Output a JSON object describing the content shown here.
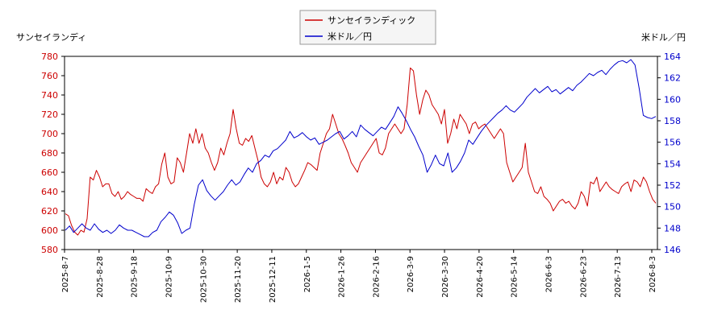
{
  "chart_data": {
    "type": "line",
    "left_axis_label": "サンセイランディ",
    "right_axis_label": "米ドル／円",
    "legend_position": "top-center",
    "grid": false,
    "x_labels": [
      "2025-8-7",
      "2025-8-28",
      "2025-9-18",
      "2025-10-9",
      "2025-10-30",
      "2025-11-20",
      "2025-12-11",
      "2026-1-5",
      "2026-1-26",
      "2026-2-16",
      "2026-3-9",
      "2026-3-30",
      "2026-4-20",
      "2026-5-14",
      "2026-6-3",
      "2026-6-23",
      "2026-7-13",
      "2026-8-3"
    ],
    "ylim_left": [
      580,
      780
    ],
    "yticks_left": [
      580,
      600,
      620,
      640,
      660,
      680,
      700,
      720,
      740,
      760,
      780
    ],
    "ylim_right": [
      146,
      164
    ],
    "yticks_right": [
      146,
      148,
      150,
      152,
      154,
      156,
      158,
      160,
      162,
      164
    ],
    "series": [
      {
        "name": "サンセイランディック",
        "axis": "left",
        "color": "#cc0000",
        "values": [
          617,
          615,
          605,
          598,
          595,
          600,
          598,
          612,
          655,
          652,
          662,
          655,
          645,
          648,
          648,
          638,
          635,
          640,
          632,
          635,
          640,
          637,
          635,
          633,
          633,
          630,
          643,
          640,
          638,
          645,
          648,
          668,
          680,
          655,
          648,
          650,
          675,
          670,
          660,
          680,
          700,
          690,
          705,
          690,
          700,
          685,
          680,
          670,
          662,
          670,
          685,
          678,
          690,
          700,
          725,
          705,
          690,
          688,
          695,
          692,
          698,
          685,
          672,
          655,
          648,
          645,
          650,
          660,
          648,
          655,
          652,
          665,
          660,
          650,
          645,
          648,
          655,
          662,
          670,
          668,
          665,
          662,
          680,
          690,
          700,
          705,
          720,
          710,
          700,
          695,
          688,
          680,
          670,
          665,
          660,
          670,
          675,
          680,
          685,
          690,
          695,
          680,
          678,
          685,
          700,
          705,
          710,
          705,
          700,
          705,
          730,
          768,
          765,
          740,
          720,
          735,
          745,
          740,
          730,
          725,
          720,
          710,
          725,
          690,
          700,
          715,
          705,
          720,
          715,
          710,
          700,
          710,
          712,
          705,
          708,
          710,
          705,
          700,
          695,
          700,
          705,
          700,
          670,
          660,
          650,
          655,
          660,
          665,
          690,
          660,
          650,
          640,
          638,
          645,
          635,
          632,
          628,
          620,
          625,
          630,
          632,
          628,
          630,
          625,
          622,
          628,
          640,
          635,
          625,
          650,
          648,
          655,
          640,
          645,
          650,
          645,
          642,
          640,
          638,
          645,
          648,
          650,
          640,
          652,
          650,
          645,
          655,
          650,
          640,
          632,
          628
        ]
      },
      {
        "name": "米ドル／円",
        "axis": "right",
        "color": "#0000cc",
        "values": [
          147.8,
          148.2,
          147.6,
          148.0,
          148.4,
          148.0,
          147.8,
          148.4,
          147.9,
          147.6,
          147.8,
          147.5,
          147.8,
          148.3,
          148.0,
          147.8,
          147.8,
          147.6,
          147.4,
          147.2,
          147.2,
          147.6,
          147.8,
          148.6,
          149.0,
          149.5,
          149.2,
          148.5,
          147.5,
          147.8,
          148.0,
          150.2,
          152.0,
          152.5,
          151.5,
          151.0,
          150.6,
          151.0,
          151.4,
          152.0,
          152.5,
          152.0,
          152.3,
          153.0,
          153.6,
          153.2,
          154.0,
          154.3,
          154.8,
          154.6,
          155.2,
          155.4,
          155.8,
          156.2,
          157.0,
          156.4,
          156.6,
          156.9,
          156.5,
          156.2,
          156.4,
          155.8,
          156.0,
          156.2,
          156.5,
          156.8,
          157.0,
          156.3,
          156.6,
          157.0,
          156.5,
          157.6,
          157.2,
          156.9,
          156.6,
          157.0,
          157.4,
          157.2,
          157.8,
          158.4,
          159.3,
          158.7,
          158.0,
          157.2,
          156.5,
          155.6,
          154.8,
          153.2,
          153.9,
          154.8,
          154.0,
          153.8,
          155.0,
          153.2,
          153.6,
          154.2,
          155.0,
          156.2,
          155.8,
          156.4,
          157.0,
          157.5,
          157.9,
          158.3,
          158.7,
          159.0,
          159.4,
          159.0,
          158.8,
          159.2,
          159.6,
          160.2,
          160.6,
          161.0,
          160.6,
          160.9,
          161.2,
          160.7,
          160.9,
          160.5,
          160.8,
          161.1,
          160.8,
          161.3,
          161.6,
          162.0,
          162.4,
          162.2,
          162.5,
          162.7,
          162.3,
          162.8,
          163.2,
          163.5,
          163.6,
          163.4,
          163.7,
          163.2,
          161.0,
          158.5,
          158.3,
          158.2,
          158.4
        ]
      }
    ]
  }
}
